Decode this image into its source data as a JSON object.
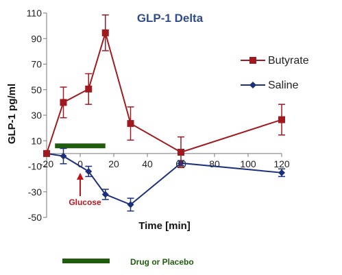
{
  "chart_data": {
    "type": "line",
    "title": "GLP-1 Delta",
    "xlabel": "Time [min]",
    "ylabel": "GLP-1 pg/ml",
    "xlim": [
      -20,
      120
    ],
    "ylim": [
      -50,
      110
    ],
    "xticks": [
      -20,
      0,
      20,
      40,
      60,
      80,
      100,
      120
    ],
    "xtick_labels": [
      "-20",
      "0",
      "20",
      "40",
      "60",
      "80",
      "100",
      "120"
    ],
    "yticks": [
      -50,
      -30,
      -10,
      10,
      30,
      50,
      70,
      90,
      110
    ],
    "ytick_labels": [
      "-50",
      "-30",
      "-10",
      "10",
      "30",
      "50",
      "70",
      "90",
      "110"
    ],
    "grid": false,
    "legend_position": "right",
    "series": [
      {
        "name": "Butyrate",
        "color": "#a0191f",
        "marker": "square",
        "x": [
          -20,
          -10,
          5,
          15,
          30,
          60,
          120
        ],
        "y": [
          0,
          40,
          50.5,
          94.5,
          23.5,
          1,
          26.5
        ],
        "err": [
          0,
          12,
          12,
          14,
          13,
          12,
          12
        ]
      },
      {
        "name": "Saline",
        "color": "#1c2f7a",
        "marker": "diamond",
        "x": [
          -20,
          -10,
          5,
          15,
          30,
          60,
          120
        ],
        "y": [
          0,
          -2,
          -14,
          -32,
          -40,
          -7.5,
          -15
        ],
        "err": [
          0,
          6,
          4,
          4,
          5,
          2,
          3
        ]
      }
    ],
    "annotations": {
      "glucose_label": "Glucose",
      "glucose_x": 0,
      "drug_label": "Drug or Placebo",
      "drug_bar_x": [
        -15,
        15
      ],
      "drug_bar_y": 6
    },
    "colors": {
      "butyrate": "#a0191f",
      "saline": "#1c2f7a",
      "title": "#2e4d8a",
      "drug_bar": "#1f5c0e",
      "drug_text": "#1f5c0e",
      "glucose": "#c0141c"
    }
  }
}
